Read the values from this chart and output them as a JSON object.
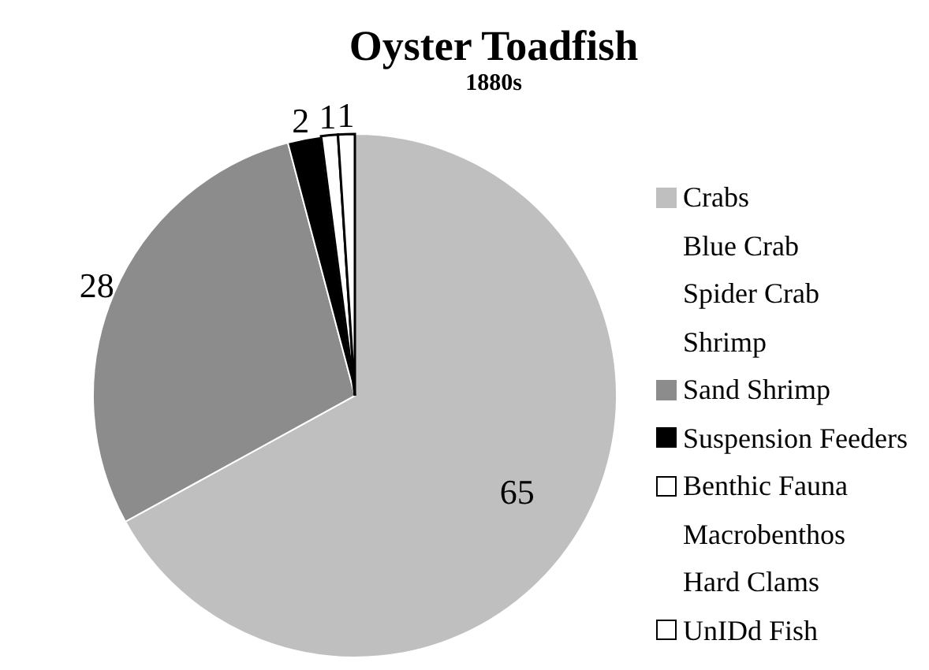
{
  "chart_data": {
    "type": "pie",
    "title": "Oyster Toadfish",
    "subtitle": "1880s",
    "categories": [
      "Crabs",
      "Blue Crab",
      "Spider Crab",
      "Shrimp",
      "Sand Shrimp",
      "Suspension Feeders",
      "Benthic Fauna",
      "Macrobenthos",
      "Hard Clams",
      "UnIDd Fish"
    ],
    "values": [
      65,
      0,
      0,
      0,
      28,
      2,
      1,
      0,
      0,
      1
    ],
    "colors": [
      "#bfbfbf",
      null,
      null,
      null,
      "#8c8c8c",
      "#000000",
      "#ffffff",
      null,
      null,
      "#ffffff"
    ],
    "data_labels": true,
    "legend": "right"
  }
}
